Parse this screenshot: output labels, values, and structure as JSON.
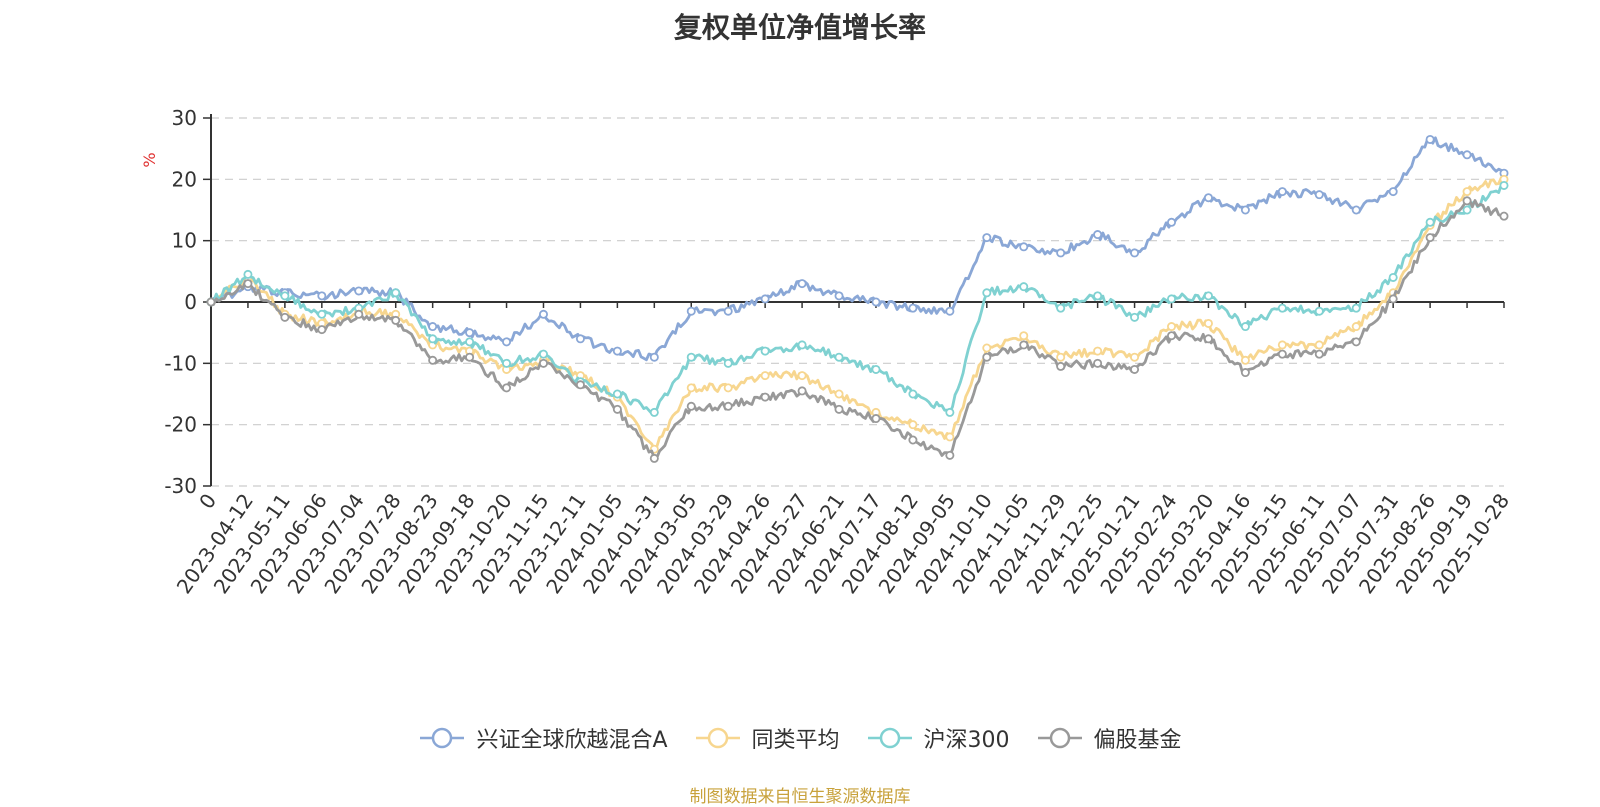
{
  "chart_data": {
    "type": "line",
    "title": "复权单位净值增长率",
    "ylabel": "%",
    "ylim": [
      -30,
      30
    ],
    "yticks": [
      30,
      20,
      10,
      0,
      -10,
      -20,
      -30
    ],
    "grid": true,
    "legend_position": "bottom",
    "x": [
      "0",
      "2023-04-12",
      "2023-05-11",
      "2023-06-06",
      "2023-07-04",
      "2023-07-28",
      "2023-08-23",
      "2023-09-18",
      "2023-10-20",
      "2023-11-15",
      "2023-12-11",
      "2024-01-05",
      "2024-01-31",
      "2024-03-05",
      "2024-03-29",
      "2024-04-26",
      "2024-05-27",
      "2024-06-21",
      "2024-07-17",
      "2024-08-12",
      "2024-09-05",
      "2024-10-10",
      "2024-11-05",
      "2024-11-29",
      "2024-12-25",
      "2025-01-21",
      "2025-02-24",
      "2025-03-20",
      "2025-04-16",
      "2025-05-15",
      "2025-06-11",
      "2025-07-07",
      "2025-07-31",
      "2025-08-26",
      "2025-09-19",
      "2025-10-28"
    ],
    "series": [
      {
        "name": "兴证全球欣越混合A",
        "color": "#8aa7d6",
        "values": [
          0,
          2.5,
          1.5,
          1.0,
          1.8,
          1.5,
          -4.0,
          -5.0,
          -6.5,
          -2.0,
          -6.0,
          -8.0,
          -9.0,
          -1.5,
          -1.5,
          0.5,
          3.0,
          1.0,
          0,
          -1.0,
          -1.5,
          10.5,
          9.0,
          8.0,
          11.0,
          8.0,
          13.0,
          17.0,
          15.0,
          18.0,
          17.5,
          15.0,
          18.0,
          26.5,
          24.0,
          21.0
        ]
      },
      {
        "name": "同类平均",
        "color": "#f7d68f",
        "values": [
          0,
          4.0,
          -2.0,
          -3.5,
          -1.5,
          -2.0,
          -7.0,
          -8.0,
          -11.0,
          -9.5,
          -12.0,
          -15.5,
          -24.0,
          -14.0,
          -14.0,
          -12.0,
          -12.0,
          -15.0,
          -18.0,
          -20.0,
          -22.0,
          -7.5,
          -5.5,
          -9.0,
          -8.0,
          -9.0,
          -4.0,
          -3.5,
          -9.5,
          -7.0,
          -7.0,
          -4.0,
          1.5,
          12.5,
          18.0,
          20.0
        ]
      },
      {
        "name": "沪深300",
        "color": "#7fd1d1",
        "values": [
          0,
          4.5,
          1.0,
          -2.0,
          -1.0,
          1.5,
          -6.0,
          -6.5,
          -10.0,
          -8.5,
          -13.0,
          -15.0,
          -18.0,
          -9.0,
          -10.0,
          -8.0,
          -7.0,
          -9.0,
          -11.0,
          -15.0,
          -18.0,
          1.5,
          2.5,
          -1.0,
          1.0,
          -2.5,
          0.5,
          1.0,
          -4.0,
          -1.0,
          -1.5,
          -1.0,
          4.0,
          13.0,
          15.0,
          19.0
        ]
      },
      {
        "name": "偏股基金",
        "color": "#999999",
        "values": [
          0,
          3.0,
          -2.5,
          -4.5,
          -2.0,
          -3.0,
          -9.5,
          -9.0,
          -14.0,
          -10.0,
          -13.5,
          -17.5,
          -25.5,
          -17.0,
          -17.0,
          -15.5,
          -14.5,
          -17.5,
          -19.0,
          -22.5,
          -25.0,
          -9.0,
          -7.0,
          -10.5,
          -10.0,
          -11.0,
          -5.5,
          -6.0,
          -11.5,
          -8.5,
          -8.5,
          -6.5,
          0.5,
          10.5,
          16.5,
          14.0
        ]
      }
    ]
  },
  "source_note": "制图数据来自恒生聚源数据库"
}
